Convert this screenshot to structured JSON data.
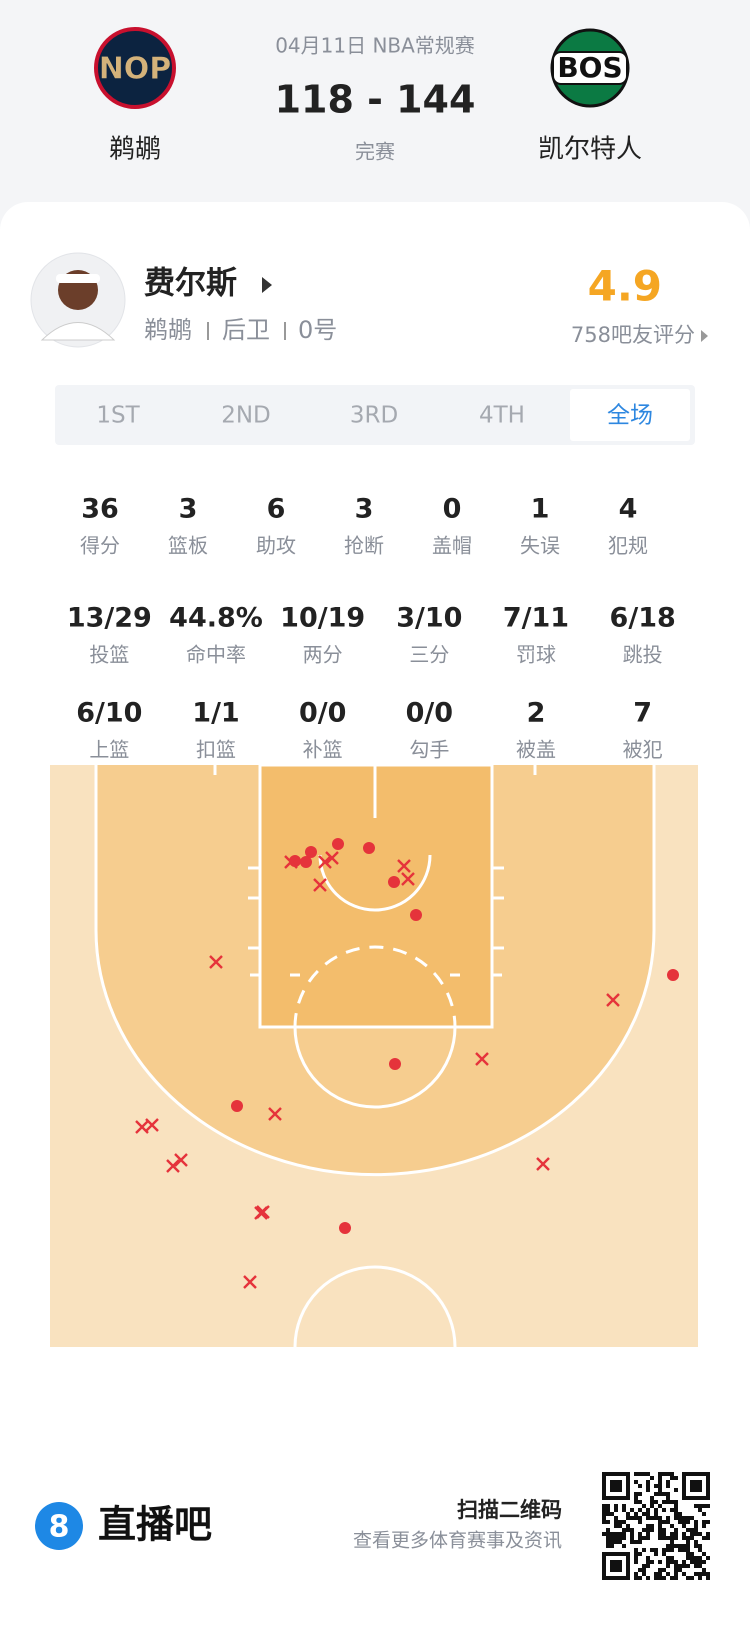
{
  "header": {
    "date": "04月11日 NBA常规赛",
    "score": "118 - 144",
    "status": "完赛",
    "home": {
      "logo": "NOP",
      "name": "鹈鹕"
    },
    "away": {
      "logo": "BOS",
      "name": "凯尔特人"
    }
  },
  "player": {
    "name": "费尔斯",
    "team": "鹈鹕",
    "position": "后卫",
    "number": "0号",
    "rating": "4.9",
    "rating_label": "758吧友评分"
  },
  "tabs": [
    "1ST",
    "2ND",
    "3RD",
    "4TH",
    "全场"
  ],
  "stats": [
    [
      {
        "value": "36",
        "label": "得分"
      },
      {
        "value": "3",
        "label": "篮板"
      },
      {
        "value": "6",
        "label": "助攻"
      },
      {
        "value": "3",
        "label": "抢断"
      },
      {
        "value": "0",
        "label": "盖帽"
      },
      {
        "value": "1",
        "label": "失误"
      },
      {
        "value": "4",
        "label": "犯规"
      }
    ],
    [
      {
        "value": "13/29",
        "label": "投篮"
      },
      {
        "value": "44.8%",
        "label": "命中率"
      },
      {
        "value": "10/19",
        "label": "两分"
      },
      {
        "value": "3/10",
        "label": "三分"
      },
      {
        "value": "7/11",
        "label": "罚球"
      },
      {
        "value": "6/18",
        "label": "跳投"
      }
    ],
    [
      {
        "value": "6/10",
        "label": "上篮"
      },
      {
        "value": "1/1",
        "label": "扣篮"
      },
      {
        "value": "0/0",
        "label": "补篮"
      },
      {
        "value": "0/0",
        "label": "勾手"
      },
      {
        "value": "2",
        "label": "被盖"
      },
      {
        "value": "7",
        "label": "被犯"
      }
    ]
  ],
  "watermark": "直播吧",
  "footer": {
    "logo": "8",
    "brand": "直播吧",
    "scan": "扫描二维码",
    "desc": "查看更多体育赛事及资讯"
  }
}
